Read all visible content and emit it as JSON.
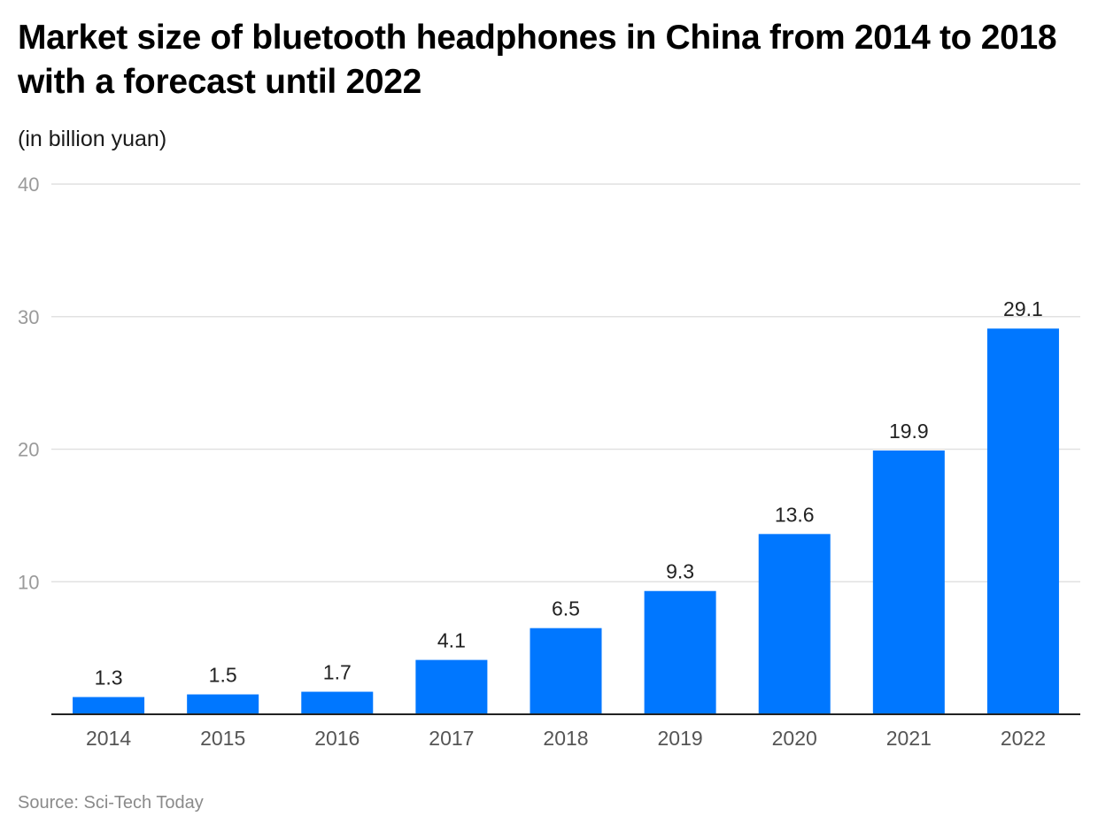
{
  "chart_data": {
    "type": "bar",
    "title": "Market size of bluetooth headphones in China from 2014 to 2018 with a forecast until 2022",
    "subtitle": "(in billion yuan)",
    "categories": [
      "2014",
      "2015",
      "2016",
      "2017",
      "2018",
      "2019",
      "2020",
      "2021",
      "2022"
    ],
    "values": [
      1.3,
      1.5,
      1.7,
      4.1,
      6.5,
      9.3,
      13.6,
      19.9,
      29.1
    ],
    "data_labels": [
      "1.3",
      "1.5",
      "1.7",
      "4.1",
      "6.5",
      "9.3",
      "13.6",
      "19.9",
      "29.1"
    ],
    "xlabel": "",
    "ylabel": "",
    "ylim": [
      0,
      40
    ],
    "yticks": [
      10,
      20,
      30,
      40
    ],
    "ytick_labels": [
      "10",
      "20",
      "30",
      "40"
    ],
    "grid": true,
    "legend": "none",
    "bar_color": "#0077ff"
  },
  "source": "Source: Sci-Tech Today"
}
